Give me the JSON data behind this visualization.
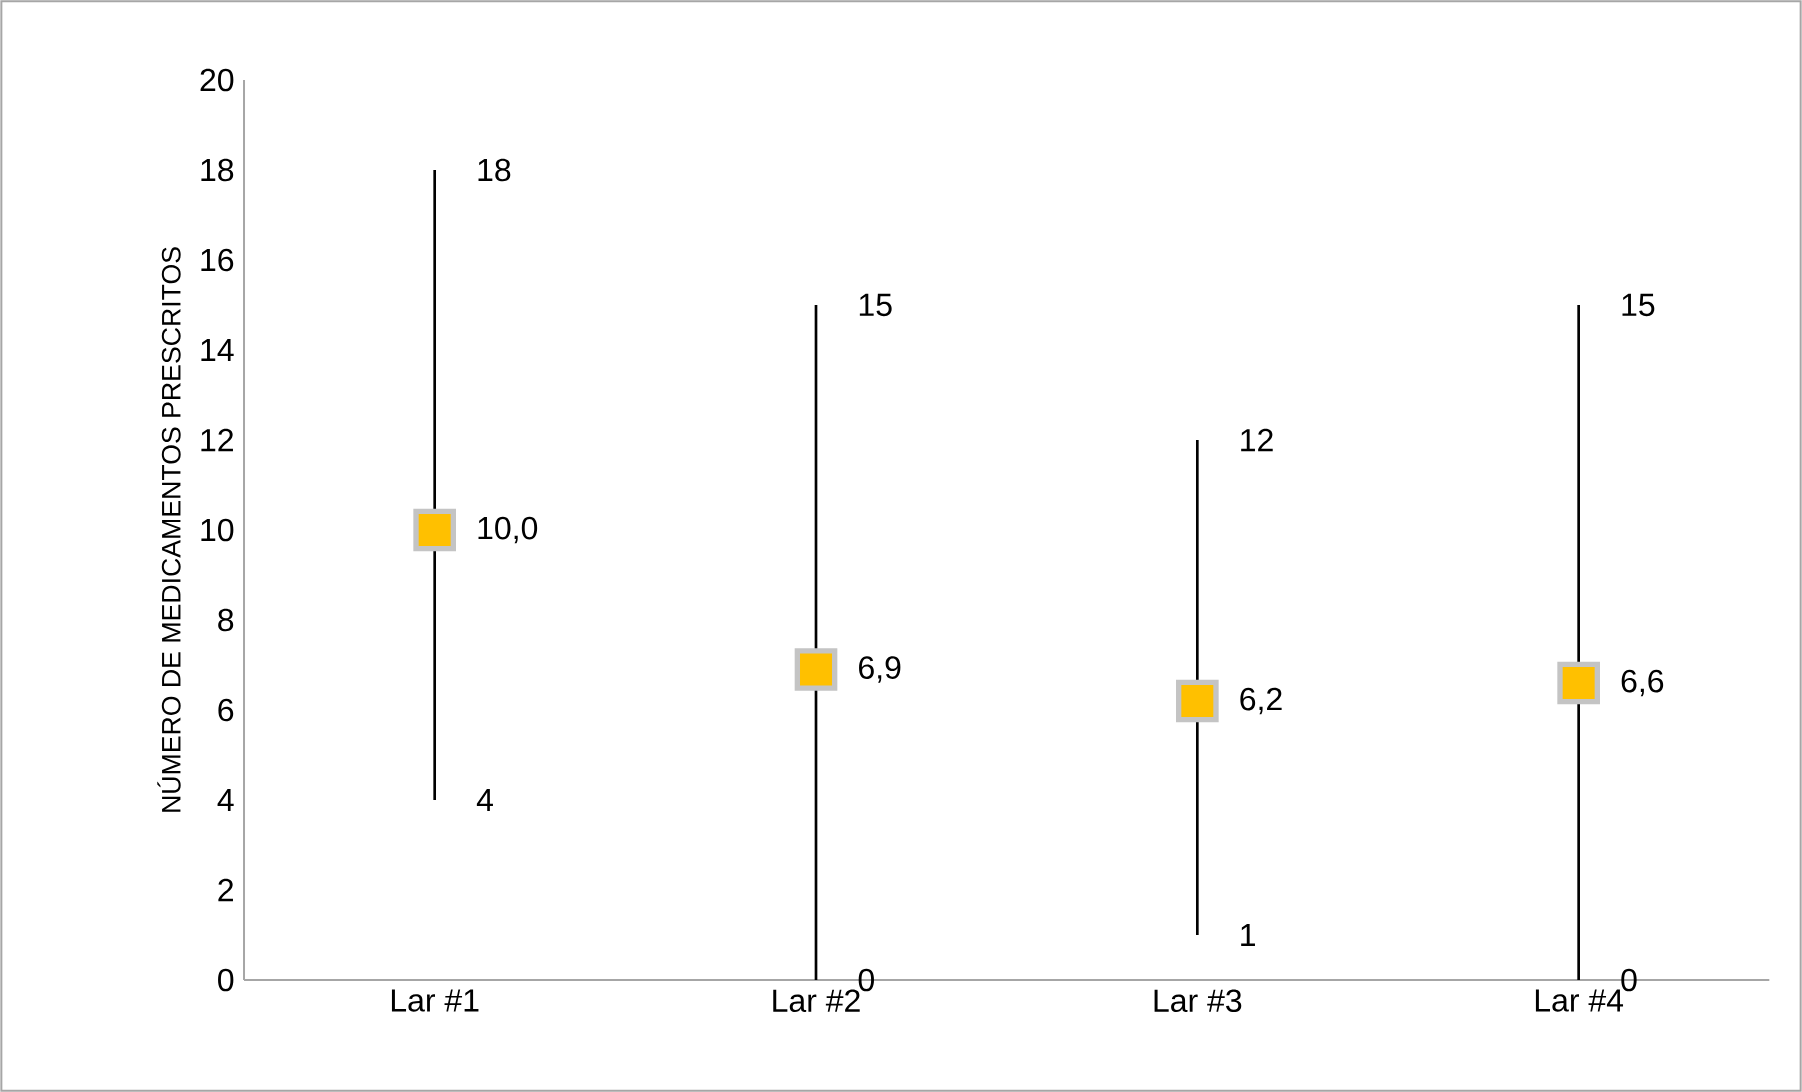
{
  "chart_data": {
    "type": "scatter",
    "ylabel": "NÚMERO DE MEDICAMENTOS PRESCRITOS",
    "categories": [
      "Lar #1",
      "Lar #2",
      "Lar #3",
      "Lar #4"
    ],
    "values": [
      10.0,
      6.9,
      6.2,
      6.6
    ],
    "value_labels": [
      "10,0",
      "6,9",
      "6,2",
      "6,6"
    ],
    "errors": [
      [
        4,
        18
      ],
      [
        0,
        15
      ],
      [
        1,
        12
      ],
      [
        0,
        15
      ]
    ],
    "color": "#ffc000",
    "marker": "square",
    "ylim": [
      0,
      20
    ],
    "yticks": [
      0,
      2,
      4,
      6,
      8,
      10,
      12,
      14,
      16,
      18,
      20
    ],
    "annotations": [
      "18",
      "4",
      "15",
      "0",
      "12",
      "1",
      "15",
      "0"
    ]
  }
}
